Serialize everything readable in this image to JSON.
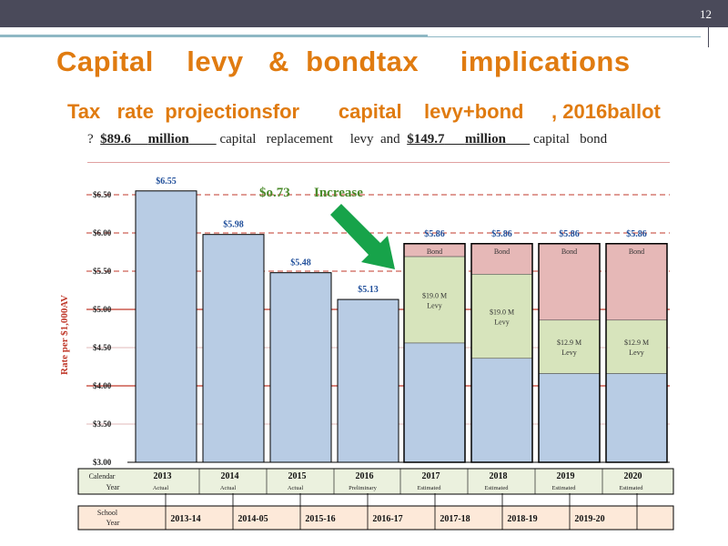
{
  "slide": {
    "page_number": "12",
    "title": "Capital    levy   &  bondtax     implications",
    "subtitle": "Tax   rate  projectionsfor       capital    levy+bond     , 2016ballot",
    "desc": {
      "bullet": "?",
      "amount1": "$89.6",
      "unit1": "million",
      "text1": "capital   replacement     levy  and",
      "amount2": "$149.7",
      "unit2": "million",
      "text2": "capital   bond"
    }
  },
  "colors": {
    "title": "#e07b10",
    "bar_base": "#b8cce4",
    "bond": "#e6b8b7",
    "levy": "#d7e4bc",
    "value_label": "#1f4e9a",
    "increase": "#4a8a2a",
    "arrow": "#17a34a",
    "axis_title": "#c0392b",
    "red_line": "#c0392b"
  },
  "chart_data": {
    "type": "bar",
    "ylabel": "Rate    per    $1,000AV",
    "ylim": [
      3.0,
      6.5
    ],
    "ticks": [
      3.0,
      3.5,
      4.0,
      4.5,
      5.0,
      5.5,
      6.0,
      6.5
    ],
    "tick_labels": [
      "$3.00",
      "$3.50",
      "$4.00",
      "$4.50",
      "$5.00",
      "$5.50",
      "$6.00",
      "$6.50"
    ],
    "red_lines": [
      4.0,
      5.0
    ],
    "dashed_lines": [
      5.5,
      6.0,
      6.5
    ],
    "categories": [
      "2013",
      "2014",
      "2015",
      "2016",
      "2017",
      "2018",
      "2019",
      "2020"
    ],
    "statuses": [
      "Actual",
      "Actual",
      "Actual",
      "Preliminary",
      "Estimated",
      "Estimated",
      "Estimated",
      "Estimated"
    ],
    "totals": [
      6.55,
      5.98,
      5.48,
      5.13,
      5.86,
      5.86,
      5.86,
      5.86
    ],
    "total_labels": [
      "$6.55",
      "$5.98",
      "$5.48",
      "$5.13",
      "$5.86",
      "$5.86",
      "$5.86",
      "$5.86"
    ],
    "base_values": [
      6.55,
      5.98,
      5.48,
      5.13,
      4.56,
      4.36,
      4.16,
      4.16
    ],
    "levy_top": [
      null,
      null,
      null,
      null,
      5.69,
      5.46,
      4.86,
      4.86
    ],
    "series": [
      {
        "name": "Bond",
        "values": [
          null,
          null,
          null,
          null,
          0.17,
          0.4,
          1.0,
          1.0
        ]
      },
      {
        "name": "Levy",
        "values": [
          null,
          null,
          null,
          null,
          1.13,
          1.1,
          0.7,
          0.7
        ]
      }
    ],
    "bond_labels": [
      "",
      "",
      "",
      "",
      "Bond",
      "Bond",
      "Bond",
      "Bond"
    ],
    "levy_labels": [
      "",
      "",
      "",
      "",
      "$19.0    M",
      "$19.0    M",
      "$12.9    M",
      "$12.9    M"
    ],
    "levy_sublabels": [
      "",
      "",
      "",
      "",
      "Levy",
      "Levy",
      "Levy",
      "Levy"
    ],
    "annotation": {
      "amount": "$o.73",
      "text": "Increase"
    },
    "calendar_label": [
      "Calendar",
      "Year"
    ],
    "school_label": [
      "School",
      "Year"
    ],
    "school_years": [
      "2013-14",
      "2014-05",
      "2015-16",
      "2016-17",
      "2017-18",
      "2018-19",
      "2019-20",
      ""
    ]
  }
}
